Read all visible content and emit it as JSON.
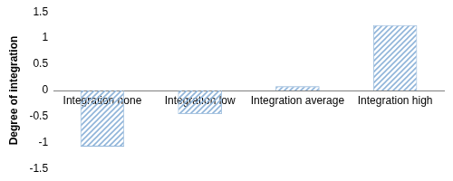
{
  "chart_data": {
    "type": "bar",
    "y_label": "Degree of integration",
    "categories": [
      "Integration none",
      "Integration low",
      "Integration average",
      "Integration high"
    ],
    "values": [
      -1.07,
      -0.45,
      0.08,
      1.25
    ],
    "color": "#8fb4d9",
    "ylim": [
      -1.5,
      1.5
    ],
    "yticks": [
      -1.5,
      -1,
      -0.5,
      0,
      0.5,
      1,
      1.5
    ],
    "grid": false
  }
}
